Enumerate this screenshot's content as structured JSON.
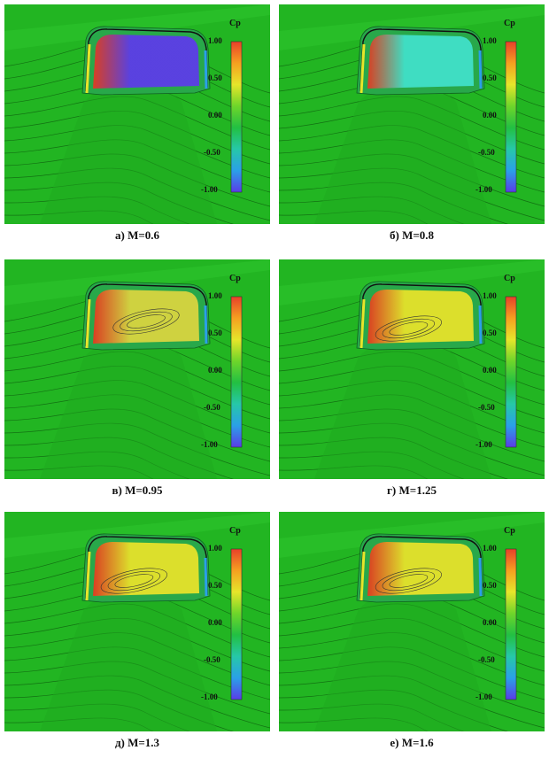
{
  "colorbar": {
    "title": "Cp",
    "ticks": [
      "1.00",
      "0.50",
      "0.00",
      "-0.50",
      "-1.00"
    ],
    "colors": [
      "#e8402a",
      "#f5a020",
      "#e6e62a",
      "#6ed62a",
      "#22c042",
      "#26c8a8",
      "#2aa0e8",
      "#5a3ce8"
    ]
  },
  "background_color": "#22b522",
  "panels": [
    {
      "caption": "а) M=0.6",
      "mach": 0.6,
      "inner_color": "#5c3ce8",
      "left_color": "#e6e62a"
    },
    {
      "caption": "б) M=0.8",
      "mach": 0.8,
      "inner_color": "#40e0c8",
      "left_color": "#e6e62a"
    },
    {
      "caption": "в) M=0.95",
      "mach": 0.95,
      "inner_color": "#d8d440",
      "left_color": "#e6e62a"
    },
    {
      "caption": "г) M=1.25",
      "mach": 1.25,
      "inner_color": "#e6e22a",
      "left_color": "#e6e62a"
    },
    {
      "caption": "д) M=1.3",
      "mach": 1.3,
      "inner_color": "#e6e22a",
      "left_color": "#e6e62a"
    },
    {
      "caption": "е) M=1.6",
      "mach": 1.6,
      "inner_color": "#e6e22a",
      "left_color": "#e6e62a"
    }
  ]
}
